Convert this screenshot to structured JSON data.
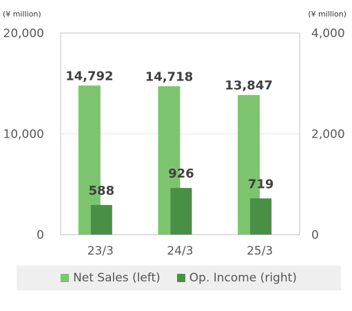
{
  "units": {
    "left": "(¥ million)",
    "right": "(¥ million)"
  },
  "chart_data": {
    "type": "bar",
    "categories": [
      "23/3",
      "24/3",
      "25/3"
    ],
    "series": [
      {
        "name": "Net Sales (left)",
        "axis": "left",
        "values": [
          14792,
          14718,
          13847
        ],
        "labels": [
          "14,792",
          "14,718",
          "13,847"
        ],
        "color": "#7dc46f"
      },
      {
        "name": "Op. Income (right)",
        "axis": "right",
        "values": [
          588,
          926,
          719
        ],
        "labels": [
          "588",
          "926",
          "719"
        ],
        "color": "#4a8f46"
      }
    ],
    "y_left": {
      "range": [
        0,
        20000
      ],
      "ticks": [
        0,
        10000,
        20000
      ],
      "tick_labels": [
        "0",
        "10,000",
        "20,000"
      ]
    },
    "y_right": {
      "range": [
        0,
        4000
      ],
      "ticks": [
        0,
        2000,
        4000
      ],
      "tick_labels": [
        "0",
        "2,000",
        "4,000"
      ]
    },
    "legend_position": "bottom"
  }
}
